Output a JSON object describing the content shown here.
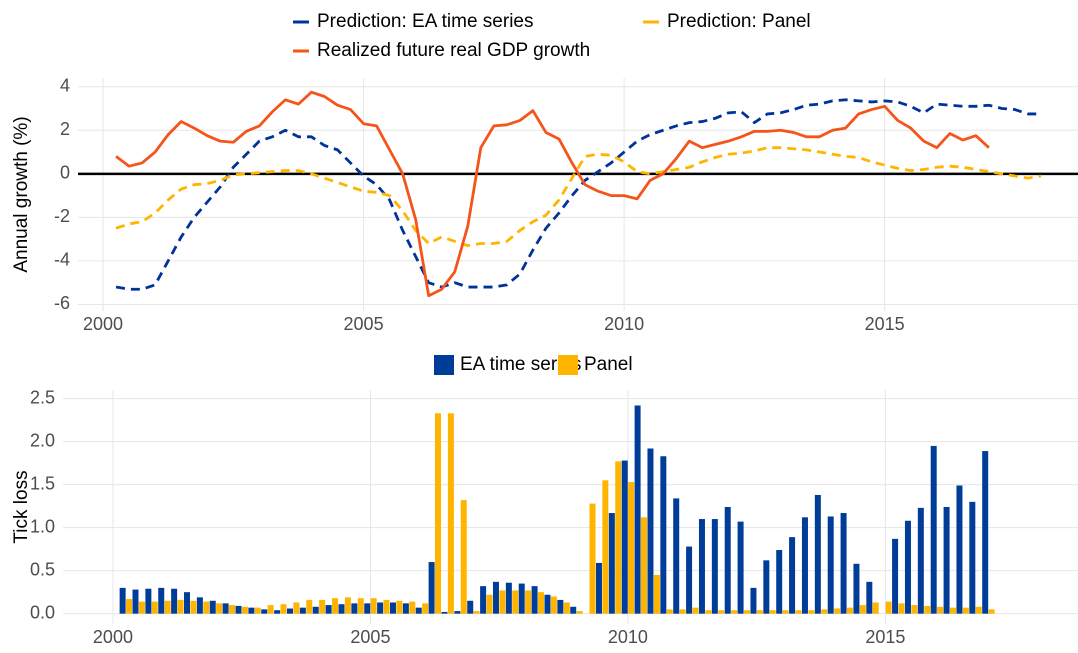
{
  "chart_data": [
    {
      "type": "line",
      "y_label": "Annual growth (%)",
      "legend": "top",
      "grid": true,
      "zero_line": true,
      "xlim": [
        1999.52,
        2018.71
      ],
      "xticks": [
        2000,
        2005,
        2010,
        2015
      ],
      "ylim": [
        -6.3,
        4.4
      ],
      "yticks": [
        -6,
        -4,
        -2,
        0,
        2,
        4
      ],
      "x": [
        2000.25,
        2000.5,
        2000.75,
        2001,
        2001.25,
        2001.5,
        2001.75,
        2002,
        2002.25,
        2002.5,
        2002.75,
        2003,
        2003.25,
        2003.5,
        2003.75,
        2004,
        2004.25,
        2004.5,
        2004.75,
        2005,
        2005.25,
        2005.5,
        2005.75,
        2006,
        2006.25,
        2006.5,
        2006.75,
        2007,
        2007.25,
        2007.5,
        2007.75,
        2008,
        2008.25,
        2008.5,
        2008.75,
        2009,
        2009.25,
        2009.5,
        2009.75,
        2010,
        2010.25,
        2010.5,
        2010.75,
        2011,
        2011.25,
        2011.5,
        2011.75,
        2012,
        2012.25,
        2012.5,
        2012.75,
        2013,
        2013.25,
        2013.5,
        2013.75,
        2014,
        2014.25,
        2014.5,
        2014.75,
        2015,
        2015.25,
        2015.5,
        2015.75,
        2016,
        2016.25,
        2016.5,
        2016.75,
        2017,
        2017.25,
        2017.5,
        2017.75,
        2018
      ],
      "series": [
        {
          "name": "Prediction: EA time series",
          "color": "#003399",
          "dashed": true,
          "values": [
            -5.2,
            -5.3,
            -5.3,
            -5.1,
            -4.0,
            -2.9,
            -2.0,
            -1.3,
            -0.6,
            0.3,
            0.9,
            1.5,
            1.7,
            2.0,
            1.7,
            1.7,
            1.3,
            1.1,
            0.5,
            -0.1,
            -0.5,
            -1.2,
            -2.6,
            -3.8,
            -5.0,
            -5.2,
            -5.0,
            -5.2,
            -5.2,
            -5.2,
            -5.1,
            -4.6,
            -3.5,
            -2.5,
            -1.8,
            -1.0,
            -0.3,
            0.1,
            0.5,
            1.0,
            1.5,
            1.8,
            2.0,
            2.2,
            2.35,
            2.4,
            2.55,
            2.8,
            2.85,
            2.35,
            2.75,
            2.8,
            2.95,
            3.15,
            3.2,
            3.35,
            3.4,
            3.35,
            3.3,
            3.35,
            3.3,
            3.1,
            2.8,
            3.2,
            3.15,
            3.1,
            3.1,
            3.15,
            3.0,
            2.95,
            2.75,
            2.75
          ]
        },
        {
          "name": "Prediction: Panel",
          "color": "#ffb400",
          "dashed": true,
          "values": [
            -2.5,
            -2.3,
            -2.2,
            -1.8,
            -1.2,
            -0.7,
            -0.5,
            -0.45,
            -0.3,
            -0.05,
            0.0,
            0.05,
            0.1,
            0.15,
            0.15,
            0.0,
            -0.2,
            -0.4,
            -0.6,
            -0.8,
            -0.85,
            -1.0,
            -1.7,
            -2.6,
            -3.2,
            -2.9,
            -3.1,
            -3.3,
            -3.2,
            -3.2,
            -3.1,
            -2.6,
            -2.2,
            -1.9,
            -1.2,
            -0.2,
            0.8,
            0.9,
            0.85,
            0.55,
            0.1,
            0.0,
            0.1,
            0.2,
            0.3,
            0.55,
            0.75,
            0.9,
            0.95,
            1.05,
            1.2,
            1.2,
            1.15,
            1.1,
            1.0,
            0.9,
            0.8,
            0.75,
            0.55,
            0.4,
            0.25,
            0.15,
            0.2,
            0.3,
            0.35,
            0.3,
            0.2,
            0.1,
            0.0,
            -0.1,
            -0.2,
            -0.1
          ]
        },
        {
          "name": "Realized future real GDP growth",
          "color": "#f5541a",
          "dashed": false,
          "values": [
            0.8,
            0.35,
            0.5,
            1.0,
            1.8,
            2.4,
            2.1,
            1.75,
            1.5,
            1.45,
            1.95,
            2.2,
            2.85,
            3.4,
            3.2,
            3.75,
            3.55,
            3.15,
            2.95,
            2.3,
            2.2,
            1.1,
            0.0,
            -2.1,
            -5.6,
            -5.3,
            -4.5,
            -2.4,
            1.2,
            2.2,
            2.25,
            2.45,
            2.9,
            1.9,
            1.6,
            0.5,
            -0.5,
            -0.8,
            -1.0,
            -1.0,
            -1.15,
            -0.3,
            0.0,
            0.7,
            1.5,
            1.2,
            1.35,
            1.5,
            1.7,
            1.95,
            1.95,
            2.0,
            1.9,
            1.7,
            1.7,
            2.0,
            2.1,
            2.75,
            2.95,
            3.1,
            2.45,
            2.1,
            1.5,
            1.2,
            1.85,
            1.55,
            1.75,
            1.2,
            null,
            null,
            null,
            null
          ]
        }
      ]
    },
    {
      "type": "bar",
      "y_label": "Tick loss",
      "legend": "top",
      "grid": true,
      "xlim": [
        1999.03,
        2018.74
      ],
      "xticks": [
        2000,
        2005,
        2010,
        2015
      ],
      "ylim": [
        -0.12,
        2.6
      ],
      "yticks": [
        {
          "value": 0,
          "label": "0.0"
        },
        0.5,
        {
          "value": 1,
          "label": "1.0"
        },
        1.5,
        {
          "value": 2,
          "label": "2.0"
        },
        2.5
      ],
      "x": [
        2000.25,
        2000.5,
        2000.75,
        2001,
        2001.25,
        2001.5,
        2001.75,
        2002,
        2002.25,
        2002.5,
        2002.75,
        2003,
        2003.25,
        2003.5,
        2003.75,
        2004,
        2004.25,
        2004.5,
        2004.75,
        2005,
        2005.25,
        2005.5,
        2005.75,
        2006,
        2006.25,
        2006.5,
        2006.75,
        2007,
        2007.25,
        2007.5,
        2007.75,
        2008,
        2008.25,
        2008.5,
        2008.75,
        2009,
        2009.25,
        2009.5,
        2009.75,
        2010,
        2010.25,
        2010.5,
        2010.75,
        2011,
        2011.25,
        2011.5,
        2011.75,
        2012,
        2012.25,
        2012.5,
        2012.75,
        2013,
        2013.25,
        2013.5,
        2013.75,
        2014,
        2014.25,
        2014.5,
        2014.75,
        2015,
        2015.25,
        2015.5,
        2015.75,
        2016,
        2016.25,
        2016.5,
        2016.75,
        2017
      ],
      "series": [
        {
          "name": "EA time series",
          "color": "#003d99",
          "values": [
            0.3,
            0.28,
            0.29,
            0.3,
            0.29,
            0.25,
            0.19,
            0.15,
            0.12,
            0.09,
            0.07,
            0.05,
            0.04,
            0.06,
            0.07,
            0.08,
            0.1,
            0.11,
            0.12,
            0.12,
            0.13,
            0.13,
            0.12,
            0.07,
            0.6,
            0.02,
            0.03,
            0.15,
            0.32,
            0.37,
            0.36,
            0.35,
            0.32,
            0.22,
            0.16,
            0.08,
            0.0,
            0.59,
            1.17,
            1.78,
            2.42,
            1.92,
            1.83,
            1.34,
            0.78,
            1.1,
            1.1,
            1.24,
            1.07,
            0.3,
            0.62,
            0.74,
            0.89,
            1.12,
            1.38,
            1.13,
            1.17,
            0.58,
            0.37,
            0.0,
            0.87,
            1.08,
            1.23,
            1.95,
            1.24,
            1.49,
            1.3,
            1.89
          ]
        },
        {
          "name": "Panel",
          "color": "#ffb400",
          "values": [
            0.17,
            0.14,
            0.14,
            0.15,
            0.16,
            0.15,
            0.14,
            0.12,
            0.1,
            0.08,
            0.07,
            0.1,
            0.11,
            0.13,
            0.16,
            0.16,
            0.18,
            0.19,
            0.18,
            0.18,
            0.16,
            0.15,
            0.14,
            0.12,
            2.33,
            2.33,
            1.32,
            0.03,
            0.22,
            0.27,
            0.27,
            0.27,
            0.25,
            0.2,
            0.13,
            0.03,
            1.28,
            1.55,
            1.77,
            1.53,
            1.12,
            0.45,
            0.05,
            0.05,
            0.07,
            0.04,
            0.04,
            0.04,
            0.04,
            0.04,
            0.04,
            0.04,
            0.04,
            0.04,
            0.05,
            0.06,
            0.07,
            0.1,
            0.13,
            0.14,
            0.12,
            0.1,
            0.09,
            0.08,
            0.07,
            0.07,
            0.08,
            0.05
          ]
        }
      ]
    }
  ]
}
